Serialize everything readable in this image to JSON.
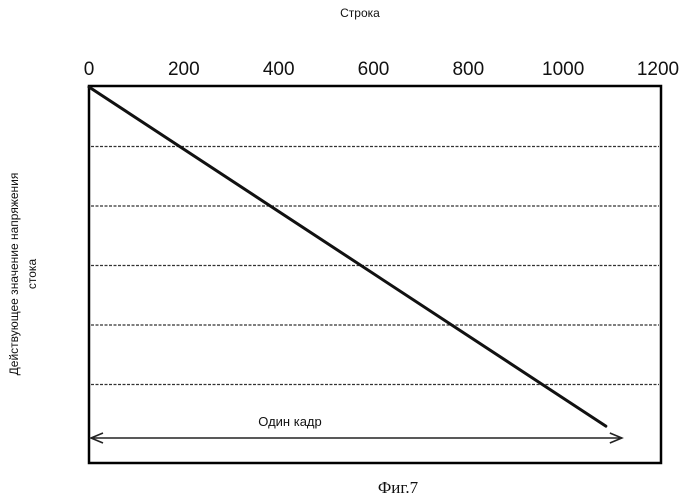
{
  "chart_data": {
    "type": "line",
    "title": "",
    "xlabel": "Строка",
    "ylabel_lines": [
      "Действующее  значение напряжения",
      "стока"
    ],
    "xlim": [
      0,
      1200
    ],
    "x_ticks": [
      0,
      200,
      400,
      600,
      800,
      1000,
      1200
    ],
    "x_axis_position": "top",
    "y_ticks_labeled": false,
    "grid": "horizontal dashed",
    "grid_levels": [
      1,
      2,
      3,
      4,
      5
    ],
    "ylim": [
      0,
      6
    ],
    "series": [
      {
        "x": [
          0,
          1090
        ],
        "y": [
          6,
          0.3
        ]
      }
    ],
    "annotation": {
      "text": "Один кадр",
      "from_x": 0,
      "to_x": 1090,
      "style": "double-arrow"
    },
    "caption": "Фиг.7",
    "colors": {
      "line": "#111111",
      "grid": "#333333",
      "frame": "#000000"
    }
  }
}
